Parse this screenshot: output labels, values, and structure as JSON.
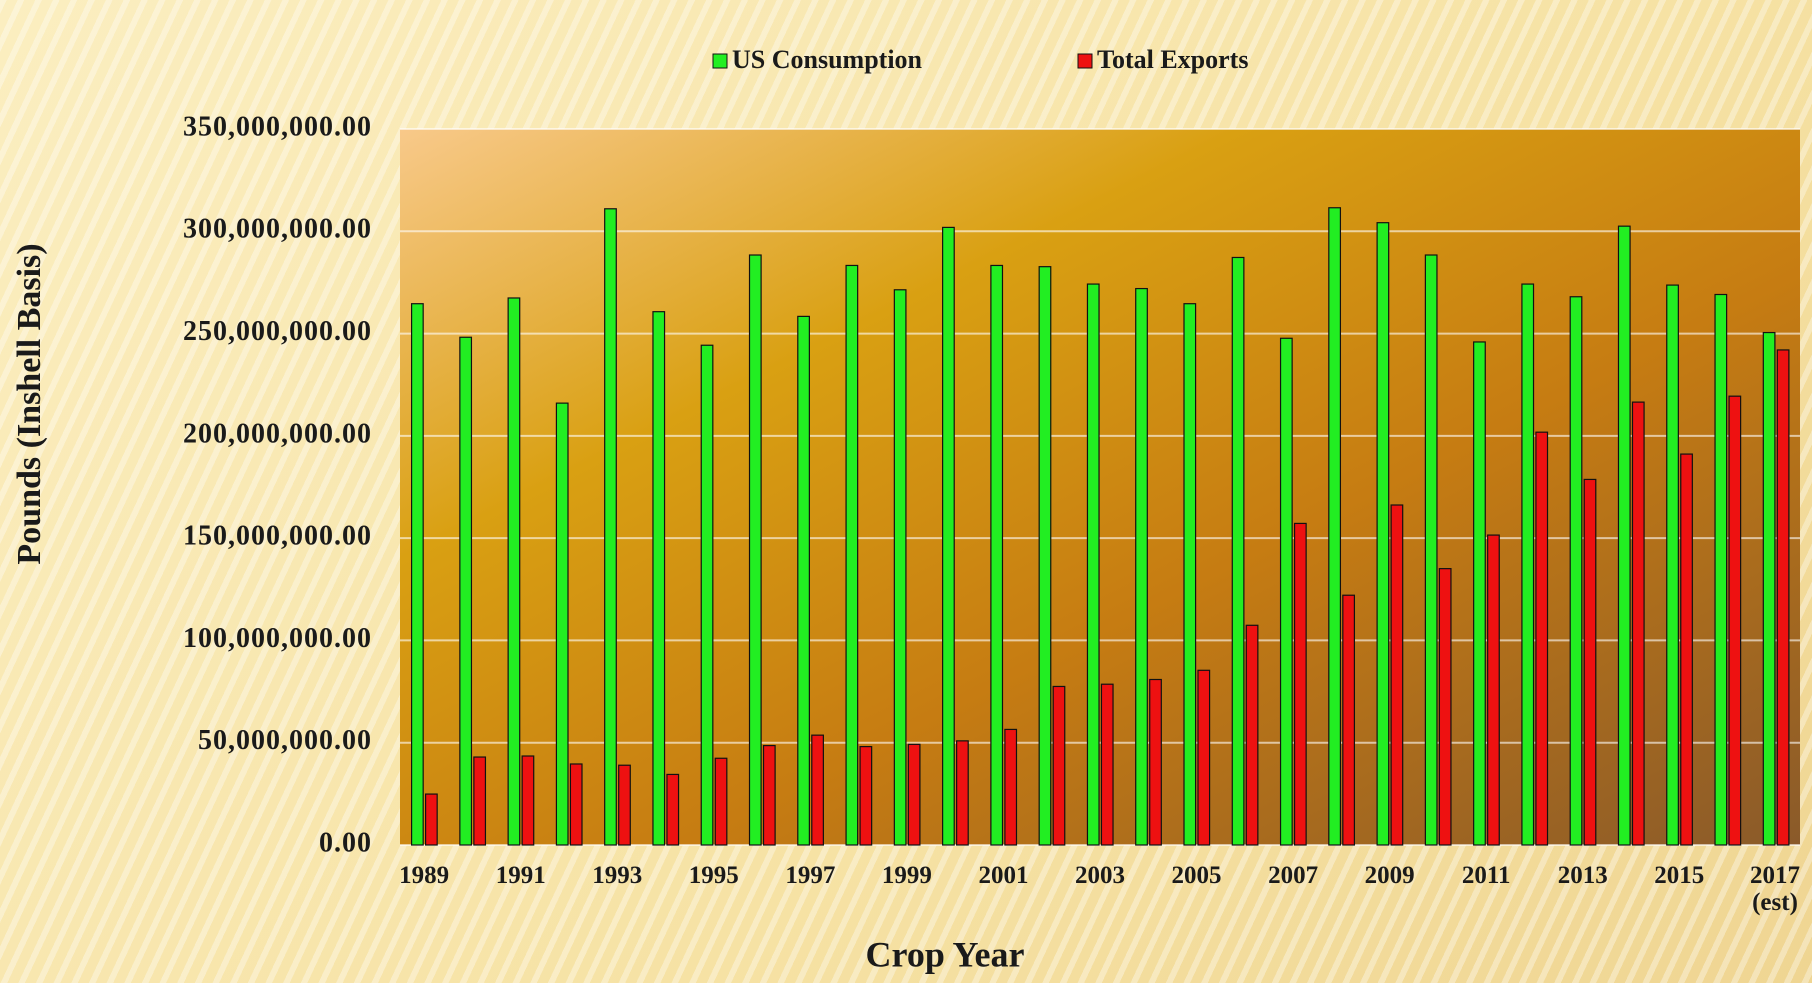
{
  "chart_data": {
    "type": "bar",
    "x_label": "Crop Year",
    "y_label": "Pounds (Inshell Basis)",
    "categories": [
      "1989",
      null,
      "1991",
      null,
      "1993",
      null,
      "1995",
      null,
      "1997",
      null,
      "1999",
      null,
      "2001",
      null,
      "2003",
      null,
      "2005",
      null,
      "2007",
      null,
      "2009",
      null,
      "2011",
      null,
      "2013",
      null,
      "2015",
      null,
      "2017 (est)"
    ],
    "series": [
      {
        "name": "US Consumption",
        "color": "#22ee22",
        "values": [
          264600000,
          248200000,
          267400000,
          216000000,
          311000000,
          260700000,
          244300000,
          288400000,
          258400000,
          283300000,
          271400000,
          301900000,
          283300000,
          282700000,
          274200000,
          272000000,
          264600000,
          287200000,
          247700000,
          311500000,
          304200000,
          288400000,
          245900000,
          274200000,
          268000000,
          302500000,
          273700000,
          269100000,
          250500000
        ]
      },
      {
        "name": "Total Exports",
        "color": "#ee1111",
        "values": [
          24900000,
          43000000,
          43500000,
          39600000,
          39000000,
          34500000,
          42400000,
          48600000,
          53700000,
          48100000,
          49200000,
          50900000,
          56500000,
          77500000,
          78600000,
          80900000,
          85400000,
          107400000,
          157200000,
          122100000,
          166200000,
          135100000,
          151500000,
          201800000,
          178700000,
          216500000,
          191100000,
          219400000,
          242000000
        ]
      }
    ],
    "ylim": [
      0,
      350000000
    ],
    "yticks": [
      {
        "value": 0,
        "label": "0.00"
      },
      {
        "value": 50000000,
        "label": "50,000,000.00"
      },
      {
        "value": 100000000,
        "label": "100,000,000.00"
      },
      {
        "value": 150000000,
        "label": "150,000,000.00"
      },
      {
        "value": 200000000,
        "label": "200,000,000.00"
      },
      {
        "value": 250000000,
        "label": "250,000,000.00"
      },
      {
        "value": 300000000,
        "label": "300,000,000.00"
      },
      {
        "value": 350000000,
        "label": "350,000,000.00"
      }
    ],
    "grid": true,
    "legend": "top"
  }
}
